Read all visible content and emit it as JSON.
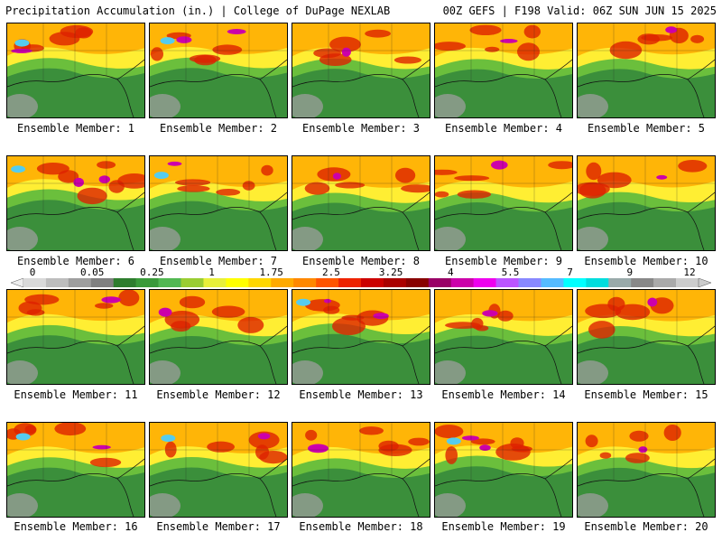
{
  "header": {
    "left_title": "Precipitation Accumulation (in.) | College of DuPage NEXLAB",
    "right_title": "00Z GEFS | F198 Valid: 06Z SUN JUN 15 2025"
  },
  "members": [
    {
      "label": "Ensemble Member: 1",
      "wet": 0.7
    },
    {
      "label": "Ensemble Member: 2",
      "wet": 0.75
    },
    {
      "label": "Ensemble Member: 3",
      "wet": 0.65
    },
    {
      "label": "Ensemble Member: 4",
      "wet": 0.6
    },
    {
      "label": "Ensemble Member: 5",
      "wet": 0.62
    },
    {
      "label": "Ensemble Member: 6",
      "wet": 0.85
    },
    {
      "label": "Ensemble Member: 7",
      "wet": 0.7
    },
    {
      "label": "Ensemble Member: 8",
      "wet": 0.5
    },
    {
      "label": "Ensemble Member: 9",
      "wet": 0.55
    },
    {
      "label": "Ensemble Member: 10",
      "wet": 0.58
    },
    {
      "label": "Ensemble Member: 11",
      "wet": 0.65
    },
    {
      "label": "Ensemble Member: 12",
      "wet": 0.55
    },
    {
      "label": "Ensemble Member: 13",
      "wet": 0.8
    },
    {
      "label": "Ensemble Member: 14",
      "wet": 0.6
    },
    {
      "label": "Ensemble Member: 15",
      "wet": 0.55
    },
    {
      "label": "Ensemble Member: 16",
      "wet": 0.7
    },
    {
      "label": "Ensemble Member: 17",
      "wet": 0.72
    },
    {
      "label": "Ensemble Member: 18",
      "wet": 0.6
    },
    {
      "label": "Ensemble Member: 19",
      "wet": 0.85
    },
    {
      "label": "Ensemble Member: 20",
      "wet": 0.68
    }
  ],
  "colorbar": {
    "tick_labels": [
      "0",
      "0.05",
      "0.25",
      "1",
      "1.75",
      "2.5",
      "3.25",
      "4",
      "5.5",
      "7",
      "9",
      "12"
    ],
    "colors": [
      "#d9d9d9",
      "#bdbdbd",
      "#9e9e9e",
      "#808080",
      "#2e7d2e",
      "#3a9a3a",
      "#52b852",
      "#9acd32",
      "#e8f03a",
      "#ffff00",
      "#ffd700",
      "#ffaa00",
      "#ff8800",
      "#ff5500",
      "#ee2200",
      "#cc0000",
      "#aa0000",
      "#880000",
      "#990066",
      "#cc00aa",
      "#ee00ee",
      "#bb55ff",
      "#8888ff",
      "#55bbff",
      "#00ffff",
      "#00dddd",
      "#99aaaa",
      "#888888",
      "#aaaaaa",
      "#cccccc"
    ]
  }
}
